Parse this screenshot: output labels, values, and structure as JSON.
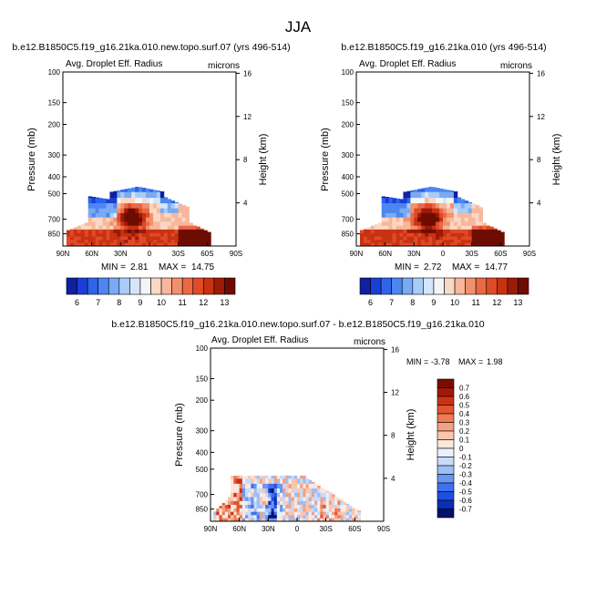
{
  "figure_title": "JJA",
  "chart_data": [
    {
      "type": "heatmap",
      "title": "b.e12.B1850C5.f19_g16.21ka.010.new.topo.surf.07 (yrs 496-514)",
      "variable": "Avg. Droplet Eff. Radius",
      "units": "microns",
      "ylabel": "Pressure (mb)",
      "ylabel_right": "Height (km)",
      "x_ticks": [
        "90N",
        "60N",
        "30N",
        "0",
        "30S",
        "60S",
        "90S"
      ],
      "y_ticks": [
        "100",
        "150",
        "200",
        "300",
        "400",
        "500",
        "700",
        "850"
      ],
      "y2_ticks": [
        "16",
        "12",
        "8",
        "4"
      ],
      "stats": {
        "min_label": "MIN =",
        "min": "2.81",
        "max_label": "MAX =",
        "max": "14.75"
      },
      "colorbar_labels": [
        "6",
        "7",
        "8",
        "9",
        "10",
        "11",
        "12",
        "13"
      ],
      "blob": {
        "lat": 18,
        "p": 700,
        "peak": 14.2,
        "base": 9.5
      }
    },
    {
      "type": "heatmap",
      "title": "b.e12.B1850C5.f19_g16.21ka.010 (yrs 496-514)",
      "variable": "Avg. Droplet Eff. Radius",
      "units": "microns",
      "ylabel": "Pressure (mb)",
      "ylabel_right": "Height (km)",
      "x_ticks": [
        "90N",
        "60N",
        "30N",
        "0",
        "30S",
        "60S",
        "90S"
      ],
      "y_ticks": [
        "100",
        "150",
        "200",
        "300",
        "400",
        "500",
        "700",
        "850"
      ],
      "y2_ticks": [
        "16",
        "12",
        "8",
        "4"
      ],
      "stats": {
        "min_label": "MIN =",
        "min": "2.72",
        "max_label": "MAX =",
        "max": "14.77"
      },
      "colorbar_labels": [
        "6",
        "7",
        "8",
        "9",
        "10",
        "11",
        "12",
        "13"
      ],
      "blob": {
        "lat": 16,
        "p": 700,
        "peak": 14.3,
        "base": 9.5
      }
    },
    {
      "type": "heatmap",
      "title": "b.e12.B1850C5.f19_g16.21ka.010.new.topo.surf.07 - b.e12.B1850C5.f19_g16.21ka.010",
      "variable": "Avg. Droplet Eff. Radius",
      "units": "microns",
      "ylabel": "Pressure (mb)",
      "ylabel_right": "Height (km)",
      "x_ticks": [
        "90N",
        "60N",
        "30N",
        "0",
        "30S",
        "60S",
        "90S"
      ],
      "y_ticks": [
        "100",
        "150",
        "200",
        "300",
        "400",
        "500",
        "700",
        "850"
      ],
      "y2_ticks": [
        "16",
        "12",
        "8",
        "4"
      ],
      "stats": {
        "min_label": "MIN =",
        "min": "-3.78",
        "max_label": "MAX =",
        "max": "1.98"
      },
      "colorbar_labels": [
        "0.7",
        "0.6",
        "0.5",
        "0.4",
        "0.3",
        "0.2",
        "0.1",
        "0",
        "-0.1",
        "-0.2",
        "-0.3",
        "-0.4",
        "-0.5",
        "-0.6",
        "-0.7"
      ]
    }
  ]
}
